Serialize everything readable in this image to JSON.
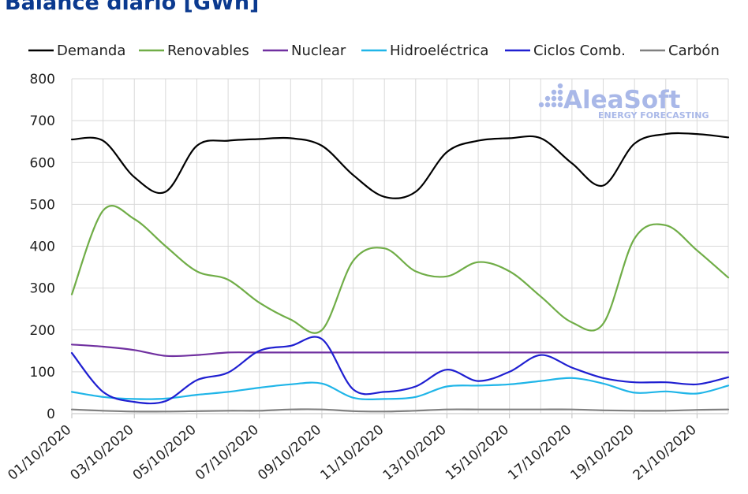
{
  "colors": {
    "title": "#0b3a8f",
    "grid": "#d9d9d9",
    "axis": "#bfbfbf",
    "logo": "#a9b8e8"
  },
  "logo": {
    "name": "AleaSoft",
    "tagline": "ENERGY FORECASTING"
  },
  "chart_data": {
    "type": "line",
    "title": "Balance diario [GWh]",
    "xlabel": "",
    "ylabel": "",
    "ylim": [
      0,
      800
    ],
    "yticks": [
      0,
      100,
      200,
      300,
      400,
      500,
      600,
      700,
      800
    ],
    "grid": true,
    "legend_position": "top",
    "x": [
      "01/10/2020",
      "02/10/2020",
      "03/10/2020",
      "04/10/2020",
      "05/10/2020",
      "06/10/2020",
      "07/10/2020",
      "08/10/2020",
      "09/10/2020",
      "10/10/2020",
      "11/10/2020",
      "12/10/2020",
      "13/10/2020",
      "14/10/2020",
      "15/10/2020",
      "16/10/2020",
      "17/10/2020",
      "18/10/2020",
      "19/10/2020",
      "20/10/2020",
      "21/10/2020",
      "22/10/2020"
    ],
    "x_tick_labels": [
      "01/10/2020",
      "03/10/2020",
      "05/10/2020",
      "07/10/2020",
      "09/10/2020",
      "11/10/2020",
      "13/10/2020",
      "15/10/2020",
      "17/10/2020",
      "19/10/2020",
      "21/10/2020"
    ],
    "series": [
      {
        "name": "Demanda",
        "color": "#000000",
        "values": [
          655,
          652,
          565,
          530,
          640,
          652,
          656,
          658,
          640,
          570,
          518,
          530,
          625,
          652,
          658,
          658,
          598,
          545,
          645,
          668,
          668,
          660
        ]
      },
      {
        "name": "Renovables",
        "color": "#70ad47",
        "values": [
          285,
          485,
          465,
          400,
          340,
          320,
          265,
          225,
          200,
          365,
          395,
          340,
          328,
          362,
          340,
          280,
          218,
          215,
          418,
          450,
          390,
          325
        ]
      },
      {
        "name": "Nuclear",
        "color": "#7030a0",
        "values": [
          165,
          160,
          152,
          138,
          140,
          146,
          146,
          146,
          146,
          146,
          146,
          146,
          146,
          146,
          146,
          146,
          146,
          146,
          146,
          146,
          146,
          146
        ]
      },
      {
        "name": "Hidroeléctrica",
        "color": "#1fb5e8",
        "values": [
          52,
          40,
          35,
          36,
          45,
          52,
          62,
          70,
          72,
          38,
          35,
          40,
          65,
          67,
          70,
          78,
          85,
          72,
          50,
          53,
          48,
          67
        ]
      },
      {
        "name": "Ciclos Comb.",
        "color": "#1f1fd1",
        "values": [
          145,
          52,
          28,
          30,
          80,
          98,
          150,
          162,
          178,
          58,
          52,
          65,
          105,
          78,
          100,
          140,
          110,
          85,
          75,
          75,
          70,
          87
        ]
      },
      {
        "name": "Carbón",
        "color": "#808080",
        "values": [
          10,
          7,
          5,
          5,
          6,
          7,
          7,
          10,
          10,
          6,
          5,
          7,
          10,
          10,
          10,
          10,
          10,
          8,
          7,
          7,
          9,
          10
        ]
      }
    ]
  }
}
